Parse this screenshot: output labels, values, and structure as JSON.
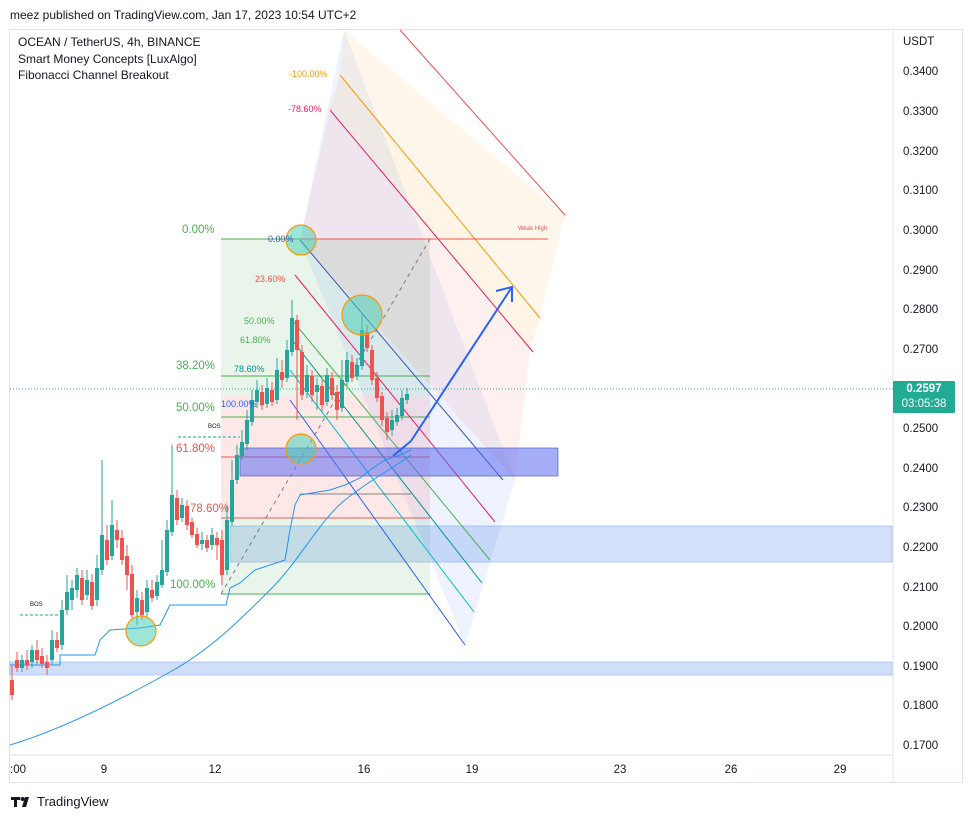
{
  "header": {
    "published": "meez published on TradingView.com, Jan 17, 2023 10:54 UTC+2"
  },
  "legend": {
    "symbol": "OCEAN / TetherUS, 4h, BINANCE",
    "indicator_1": "Smart Money Concepts [LuxAlgo]",
    "indicator_2": "Fibonacci Channel Breakout"
  },
  "axis": {
    "currency": "USDT",
    "y_ticks": [
      "0.3400",
      "0.3300",
      "0.3200",
      "0.3100",
      "0.3000",
      "0.2900",
      "0.2800",
      "0.2700",
      "0.2500",
      "0.2400",
      "0.2300",
      "0.2200",
      "0.2100",
      "0.2000",
      "0.1900",
      "0.1800",
      "0.1700"
    ],
    "x_ticks": [
      ":00",
      "9",
      "12",
      "16",
      "19",
      "23",
      "26",
      "29"
    ]
  },
  "price_tag": {
    "price": "0.2597",
    "countdown": "03:05:38",
    "color": "#22ab94"
  },
  "fib_retracement_labels": {
    "l0": "0.00%",
    "l236": "23.60%",
    "l382": "38.20%",
    "l50": "50.00%",
    "l618": "61.80%",
    "l786": "78.60%",
    "l100": "100.00%"
  },
  "fib_channel_labels": {
    "l0": "0.00%",
    "l50": "50.00%",
    "l618": "61.80%",
    "l786": "78.60%",
    "l100": "100.00%",
    "lm786": "-78.60%",
    "lm100": "-100.00%"
  },
  "markers": {
    "bos_1": "BOS",
    "bos_2": "BOS",
    "weak_high": "Weak High"
  },
  "footer": {
    "brand": "TradingView"
  },
  "colors": {
    "up": "#26a69a",
    "down": "#ef5350",
    "blue_line": "#2196f3",
    "arrow": "#2962ff"
  }
}
